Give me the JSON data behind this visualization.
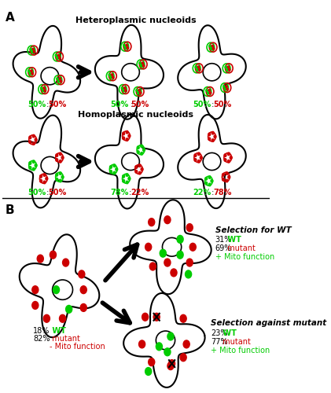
{
  "fig_width": 4.21,
  "fig_height": 5.0,
  "dpi": 100,
  "bg_color": "#ffffff",
  "panel_A_label": "A",
  "panel_B_label": "B",
  "hetero_title": "Heteroplasmic nucleoids",
  "homo_title": "Homoplasmic nucleoids",
  "green_color": "#00cc00",
  "red_color": "#cc0000",
  "black_color": "#000000",
  "label_hetero_1": [
    "50%",
    " : ",
    "50%"
  ],
  "label_hetero_2": [
    "50%",
    " :",
    "50%"
  ],
  "label_hetero_3": [
    "50%",
    " : ",
    "50%"
  ],
  "label_homo_1": [
    "50%",
    " : ",
    "50%"
  ],
  "label_homo_2": [
    "78%",
    " : ",
    "22%"
  ],
  "label_homo_3": [
    "22%",
    " : ",
    "78%"
  ],
  "sel_wt_title": "Selection for WT",
  "sel_mut_title": "Selection against mutant",
  "left_cell_label": [
    "18% ",
    "WT",
    "\n82% ",
    "mutant",
    "\n- Mito function"
  ],
  "sel_wt_label": [
    "31% ",
    "WT",
    "\n69% ",
    "mutant",
    "\n+ Mito function"
  ],
  "sel_mut_label": [
    "23% ",
    "WT",
    "\n77% ",
    "mutant",
    "\n+ Mito function"
  ]
}
